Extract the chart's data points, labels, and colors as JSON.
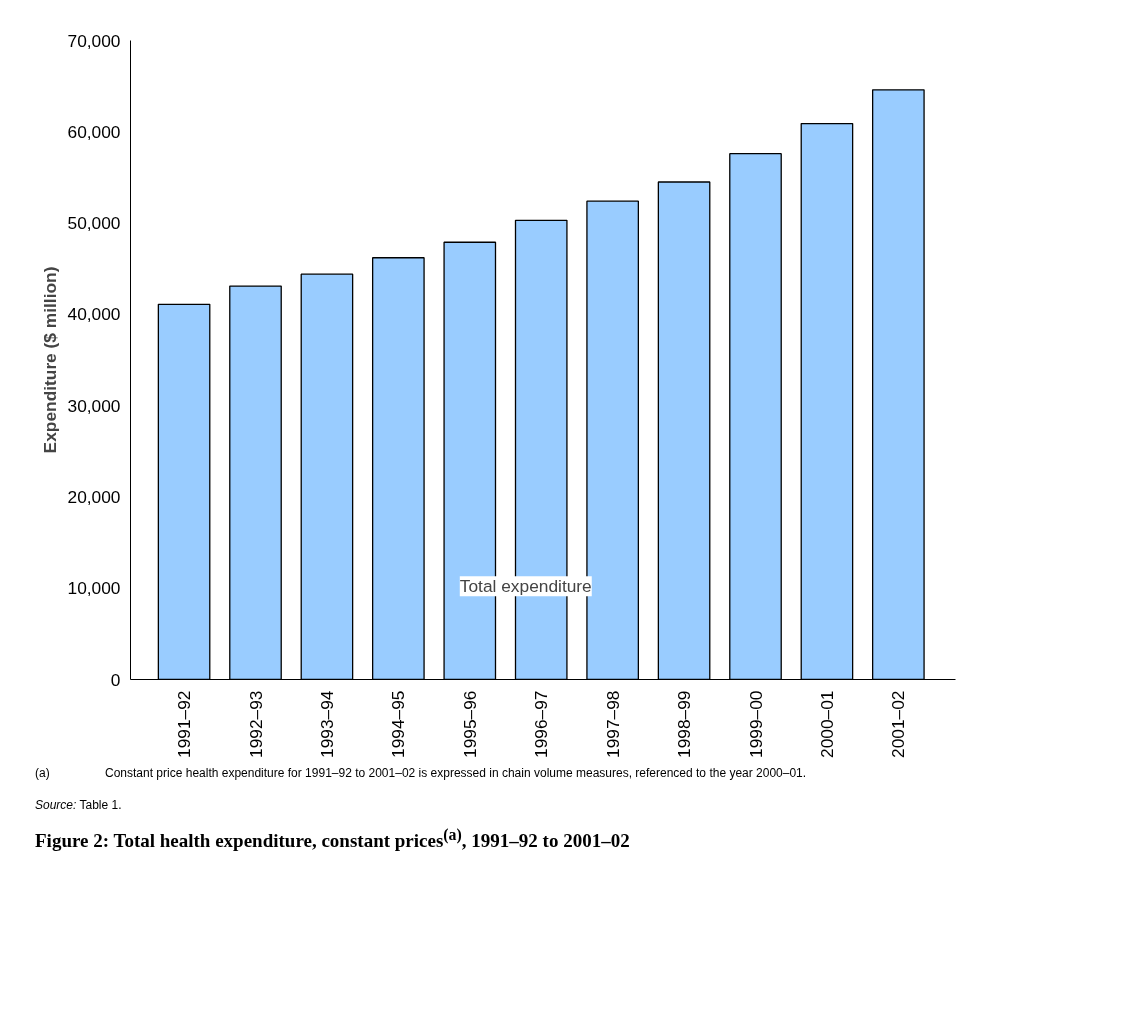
{
  "chart_data": {
    "type": "bar",
    "title": "Figure 2: Total health expenditure, constant prices$^{(a)}$, 1991–92 to 2001–02",
    "ylabel": "Expenditure ($ million)",
    "categories": [
      "1991–92",
      "1992–93",
      "1993–94",
      "1994–95",
      "1995–96",
      "1996–97",
      "1997–98",
      "1998–99",
      "1999–00",
      "2000–01",
      "2001–02"
    ],
    "values": [
      41100,
      43100,
      44400,
      46200,
      47900,
      50300,
      52400,
      54500,
      57600,
      60900,
      64600
    ],
    "color": "#99ccff",
    "ylim": [
      0,
      70000
    ],
    "yticks": [
      0,
      {
        "value": 10000,
        "label": "10,000"
      },
      {
        "value": 20000,
        "label": "20,000"
      },
      {
        "value": 30000,
        "label": "30,000"
      },
      {
        "value": 40000,
        "label": "40,000"
      },
      {
        "value": 50000,
        "label": "50,000"
      },
      {
        "value": 60000,
        "label": "60,000"
      },
      {
        "value": 70000,
        "label": "70,000"
      }
    ],
    "grid": false,
    "annotations": [
      "Total expenditure",
      "(a) Constant price health expenditure for 1991–92 to 2001–02 is expressed in chain volume measures, referenced to the year 2000–01.",
      "Source: Table 1."
    ]
  }
}
